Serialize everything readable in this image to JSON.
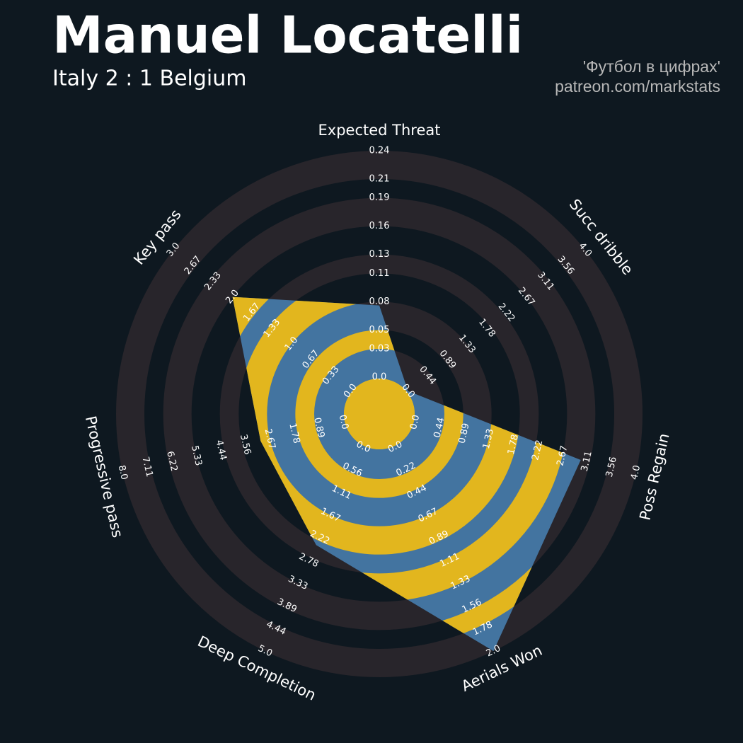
{
  "chart_data": {
    "type": "radar",
    "title": "Manuel Locatelli",
    "subtitle": "Italy 2 : 1 Belgium",
    "annotations": [
      "'Футбол в цифрах'",
      "patreon.com/markstats"
    ],
    "colors": {
      "background": "#0e1820",
      "ring": "#28252b",
      "fill": "#4374a0",
      "fill_alt": "#e2b61e"
    },
    "axes": [
      {
        "name": "Expected Threat",
        "lim": [
          0,
          0.24
        ],
        "ticks": [
          {
            "value": 0,
            "label": "0.0"
          },
          0.03,
          0.05,
          0.08,
          0.11,
          0.13,
          0.16,
          0.19,
          0.21,
          0.24
        ]
      },
      {
        "name": "Succ dribble",
        "lim": [
          0,
          4
        ],
        "ticks": [
          {
            "value": 0,
            "label": "0.0"
          },
          0.44,
          0.89,
          1.33,
          1.78,
          2.22,
          2.67,
          3.11,
          3.56,
          {
            "value": 4,
            "label": "4.0"
          }
        ]
      },
      {
        "name": "Poss Regain",
        "lim": [
          0,
          4
        ],
        "ticks": [
          {
            "value": 0,
            "label": "0.0"
          },
          0.44,
          0.89,
          1.33,
          1.78,
          2.22,
          2.67,
          3.11,
          3.56,
          {
            "value": 4,
            "label": "4.0"
          }
        ]
      },
      {
        "name": "Aerials Won",
        "lim": [
          0,
          2
        ],
        "ticks": [
          {
            "value": 0,
            "label": "0.0"
          },
          0.22,
          0.44,
          0.67,
          0.89,
          1.11,
          1.33,
          1.56,
          1.78,
          {
            "value": 2,
            "label": "2.0"
          }
        ]
      },
      {
        "name": "Deep Completion",
        "lim": [
          0,
          5
        ],
        "ticks": [
          {
            "value": 0,
            "label": "0.0"
          },
          0.56,
          1.11,
          1.67,
          2.22,
          2.78,
          3.33,
          3.89,
          4.44,
          {
            "value": 5,
            "label": "5.0"
          }
        ]
      },
      {
        "name": "Progressive pass",
        "lim": [
          0,
          8
        ],
        "ticks": [
          {
            "value": 0,
            "label": "0.0"
          },
          0.89,
          1.78,
          2.67,
          3.56,
          4.44,
          5.33,
          6.22,
          7.11,
          {
            "value": 8,
            "label": "8.0"
          }
        ]
      },
      {
        "name": "Key pass",
        "lim": [
          0,
          3
        ],
        "ticks": [
          {
            "value": 0,
            "label": "0.0"
          },
          0.33,
          0.67,
          {
            "value": 1,
            "label": "1.0"
          },
          1.33,
          1.67,
          {
            "value": 2,
            "label": "2.0"
          },
          2.33,
          2.67,
          {
            "value": 3,
            "label": "3.0"
          }
        ]
      }
    ],
    "values": [
      0.076,
      0,
      3.0,
      2.0,
      2.4,
      3.0,
      2.0
    ]
  }
}
